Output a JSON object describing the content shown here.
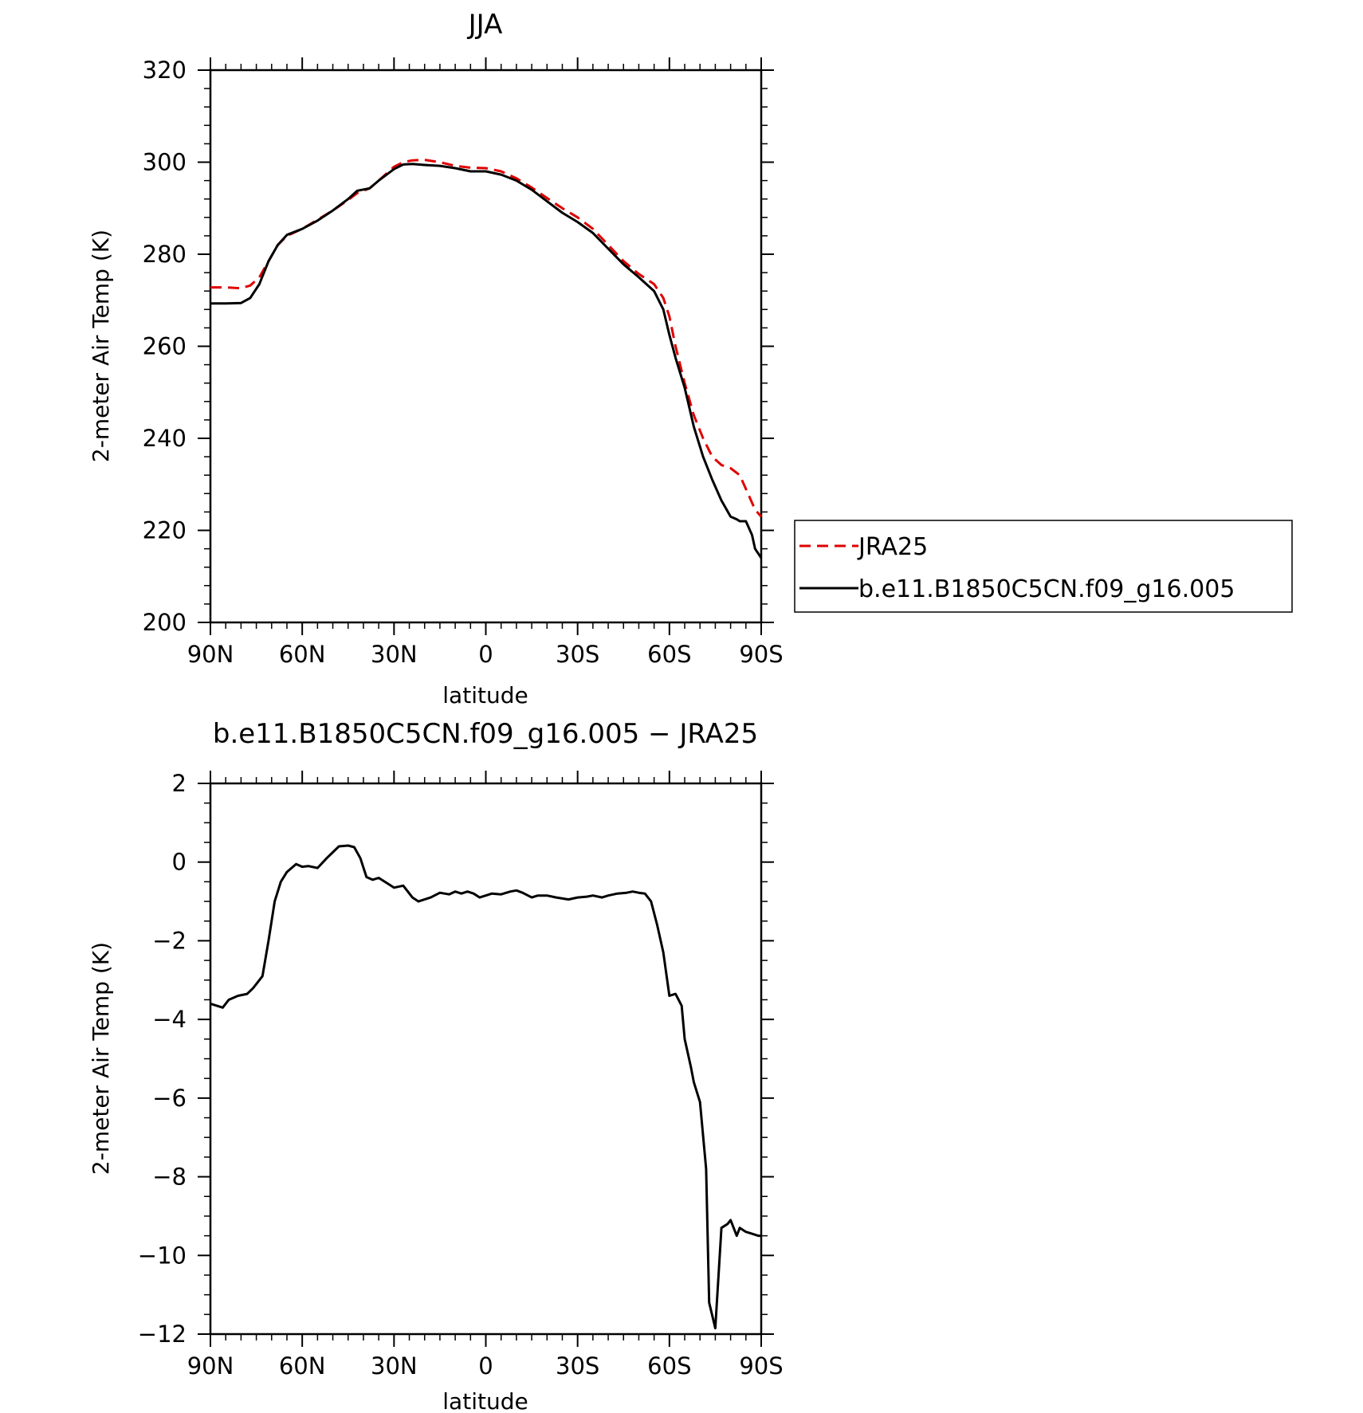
{
  "colors": {
    "model": "#000000",
    "obs": "#e00000",
    "axis": "#000000"
  },
  "chart_data": [
    {
      "type": "line",
      "title": "JJA",
      "xlabel": "latitude",
      "ylabel": "2-meter Air Temp (K)",
      "xlim": [
        90,
        -90
      ],
      "ylim": [
        200,
        320
      ],
      "xticks": [
        {
          "v": 90,
          "label": "90N"
        },
        {
          "v": 60,
          "label": "60N"
        },
        {
          "v": 30,
          "label": "30N"
        },
        {
          "v": 0,
          "label": "0"
        },
        {
          "v": -30,
          "label": "30S"
        },
        {
          "v": -60,
          "label": "60S"
        },
        {
          "v": -90,
          "label": "90S"
        }
      ],
      "yticks": [
        "200",
        "220",
        "240",
        "260",
        "280",
        "300",
        "320"
      ],
      "legend": {
        "placement": "right",
        "entries": [
          "JRA25",
          "b.e11.B1850C5CN.f09_g16.005"
        ]
      },
      "series": [
        {
          "name": "JRA25",
          "style": "dashed",
          "x": [
            90,
            85,
            80,
            77,
            74,
            71,
            68,
            65,
            60,
            55,
            50,
            45,
            42,
            38,
            35,
            30,
            27,
            24,
            20,
            15,
            10,
            5,
            0,
            -5,
            -10,
            -15,
            -20,
            -25,
            -30,
            -35,
            -40,
            -45,
            -50,
            -55,
            -58,
            -60,
            -62,
            -65,
            -68,
            -71,
            -74,
            -77,
            -80,
            -83,
            -85,
            -87,
            -88,
            -90
          ],
          "y": [
            272.8,
            272.8,
            272.6,
            273.2,
            275.0,
            278.5,
            282.0,
            284.0,
            285.5,
            287.5,
            289.5,
            291.8,
            293.3,
            294.3,
            296.0,
            299.0,
            300.0,
            300.4,
            300.5,
            300.0,
            299.2,
            298.8,
            298.7,
            298.0,
            296.5,
            294.5,
            292.2,
            290.0,
            288.0,
            285.5,
            282.0,
            278.5,
            275.7,
            273.5,
            270.5,
            266.5,
            260.0,
            252.0,
            245.0,
            240.0,
            236.0,
            234.2,
            233.5,
            232.0,
            229.0,
            226.0,
            224.5,
            223.0
          ]
        },
        {
          "name": "b.e11.B1850C5CN.f09_g16.005",
          "style": "solid",
          "x": [
            90,
            85,
            80,
            77,
            74,
            71,
            68,
            65,
            60,
            55,
            50,
            45,
            42,
            38,
            35,
            30,
            27,
            24,
            20,
            15,
            10,
            5,
            0,
            -5,
            -10,
            -15,
            -20,
            -25,
            -30,
            -35,
            -40,
            -45,
            -50,
            -55,
            -58,
            -60,
            -62,
            -65,
            -68,
            -71,
            -74,
            -77,
            -80,
            -82,
            -83,
            -85,
            -87,
            -88,
            -90
          ],
          "y": [
            269.3,
            269.3,
            269.4,
            270.5,
            273.5,
            278.5,
            282.0,
            284.2,
            285.5,
            287.3,
            289.5,
            292.0,
            293.8,
            294.3,
            296.0,
            298.5,
            299.5,
            299.6,
            299.4,
            299.2,
            298.7,
            298.0,
            298.0,
            297.3,
            296.0,
            294.0,
            291.5,
            289.0,
            287.0,
            284.6,
            281.2,
            277.8,
            275.0,
            272.0,
            268.0,
            262.5,
            257.5,
            251.0,
            242.5,
            236.0,
            231.0,
            226.5,
            223.0,
            222.4,
            222.0,
            222.0,
            219.0,
            216.0,
            214.0
          ]
        }
      ]
    },
    {
      "type": "line",
      "title": "b.e11.B1850C5CN.f09_g16.005 − JRA25",
      "xlabel": "latitude",
      "ylabel": "2-meter Air Temp (K)",
      "xlim": [
        90,
        -90
      ],
      "ylim": [
        -12,
        2
      ],
      "xticks": [
        {
          "v": 90,
          "label": "90N"
        },
        {
          "v": 60,
          "label": "60N"
        },
        {
          "v": 30,
          "label": "30N"
        },
        {
          "v": 0,
          "label": "0"
        },
        {
          "v": -30,
          "label": "30S"
        },
        {
          "v": -60,
          "label": "60S"
        },
        {
          "v": -90,
          "label": "90S"
        }
      ],
      "yticks": [
        "−12",
        "−10",
        "−8",
        "−6",
        "−4",
        "−2",
        "0",
        "2"
      ],
      "series": [
        {
          "style": "solid",
          "x": [
            90,
            86,
            84,
            81,
            78,
            76,
            73,
            71,
            69,
            67,
            65,
            62,
            60,
            58,
            55,
            52,
            48,
            45,
            43,
            41,
            39,
            37,
            35,
            32,
            30,
            27,
            24,
            22,
            20,
            18,
            15,
            12,
            10,
            8,
            6,
            4,
            2,
            0,
            -2,
            -5,
            -8,
            -10,
            -12,
            -15,
            -17,
            -20,
            -23,
            -27,
            -30,
            -33,
            -35,
            -38,
            -40,
            -43,
            -46,
            -48,
            -50,
            -52,
            -54,
            -56,
            -58,
            -60,
            -62,
            -64,
            -65,
            -67,
            -68,
            -70,
            -72,
            -73,
            -75,
            -77,
            -79,
            -80,
            -82,
            -83,
            -85,
            -87,
            -89,
            -90
          ],
          "y": [
            -3.6,
            -3.7,
            -3.5,
            -3.4,
            -3.35,
            -3.2,
            -2.9,
            -2.0,
            -1.0,
            -0.5,
            -0.25,
            -0.05,
            -0.12,
            -0.1,
            -0.15,
            0.1,
            0.4,
            0.42,
            0.38,
            0.1,
            -0.38,
            -0.45,
            -0.4,
            -0.55,
            -0.65,
            -0.6,
            -0.9,
            -1.0,
            -0.95,
            -0.9,
            -0.78,
            -0.82,
            -0.75,
            -0.8,
            -0.75,
            -0.8,
            -0.9,
            -0.85,
            -0.8,
            -0.82,
            -0.75,
            -0.72,
            -0.78,
            -0.9,
            -0.85,
            -0.85,
            -0.9,
            -0.95,
            -0.9,
            -0.88,
            -0.85,
            -0.9,
            -0.85,
            -0.8,
            -0.78,
            -0.75,
            -0.78,
            -0.8,
            -1.0,
            -1.6,
            -2.3,
            -3.4,
            -3.35,
            -3.65,
            -4.5,
            -5.2,
            -5.6,
            -6.1,
            -7.8,
            -11.2,
            -11.85,
            -9.3,
            -9.2,
            -9.1,
            -9.5,
            -9.3,
            -9.4,
            -9.45,
            -9.5,
            -9.5
          ]
        }
      ]
    }
  ]
}
